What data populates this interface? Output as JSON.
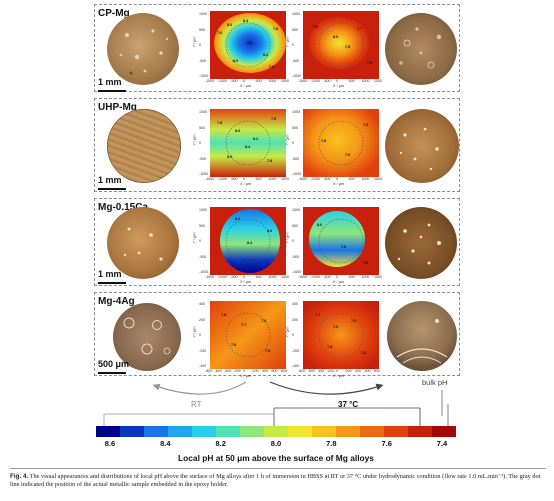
{
  "panels": [
    {
      "sample": "CP-Mg",
      "scale": "1 mm"
    },
    {
      "sample": "UHP-Mg",
      "scale": "1 mm"
    },
    {
      "sample": "Mg-0.15Ca",
      "scale": "1 mm"
    },
    {
      "sample": "Mg-4Ag",
      "scale": "500 μm"
    }
  ],
  "axes": {
    "x_title": "X / μm",
    "y_title": "Y / μm",
    "ticks_large": [
      "-1500",
      "-1000",
      "-500",
      "0",
      "500",
      "1000",
      "1500"
    ],
    "y_ticks_large": [
      "1000",
      "500",
      "0",
      "-500",
      "-1000"
    ],
    "ticks_small": [
      "-800",
      "-600",
      "-400",
      "-200",
      "0",
      "200",
      "400",
      "600",
      "800"
    ],
    "y_ticks_small": [
      "400",
      "200",
      "0",
      "-200",
      "-400"
    ]
  },
  "contour_labels": {
    "cp_rt": [
      "7.6",
      "8.0",
      "8.4",
      "8.6",
      "8.2",
      "7.8",
      "8.0",
      "7.8"
    ],
    "cp_37": [
      "7.6",
      "8.0",
      "7.8",
      "7.7",
      "7.6"
    ],
    "uhp_rt": [
      "7.8",
      "8.0",
      "8.2",
      "8.4",
      "8.0",
      "7.8",
      "7.6"
    ],
    "uhp_37": [
      "7.8",
      "7.6",
      "7.5"
    ],
    "ca_rt": [
      "8.2",
      "8.4",
      "8.0"
    ],
    "ca_37": [
      "8.0",
      "7.8",
      "7.6"
    ],
    "ag_rt": [
      "7.8",
      "7.7",
      "7.6",
      "7.8",
      "7.6"
    ],
    "ag_37": [
      "7.7",
      "7.6",
      "7.5",
      "7.8",
      "7.6"
    ]
  },
  "conditions": {
    "rt": "RT",
    "hot": "37 °C",
    "bulk": "bulk pH"
  },
  "colorbar": {
    "ticks": [
      "8.6",
      "8.4",
      "8.2",
      "8.0",
      "7.8",
      "7.6",
      "7.4"
    ],
    "title": "Local pH at 50 μm above the surface of Mg alloys",
    "colors": [
      "#00008b",
      "#0a35c0",
      "#1a73e8",
      "#1fa8f0",
      "#27d0e8",
      "#52e0b4",
      "#8fe67a",
      "#c7ea45",
      "#f0e62e",
      "#f7c21f",
      "#f59716",
      "#ee6a12",
      "#e0400e",
      "#c8200c",
      "#a40808"
    ]
  },
  "caption": {
    "label": "Fig. 4.",
    "text": "The visual appearances and distributions of local pH above the surface of Mg alloys after 1 h of immersion in HBSS at RT or 37 °C under hydrodynamic condition (flow rate 1.0 mL.min⁻¹). The gray dot line indicated the position of the actual metallic sample embedded in the epoxy holder."
  }
}
